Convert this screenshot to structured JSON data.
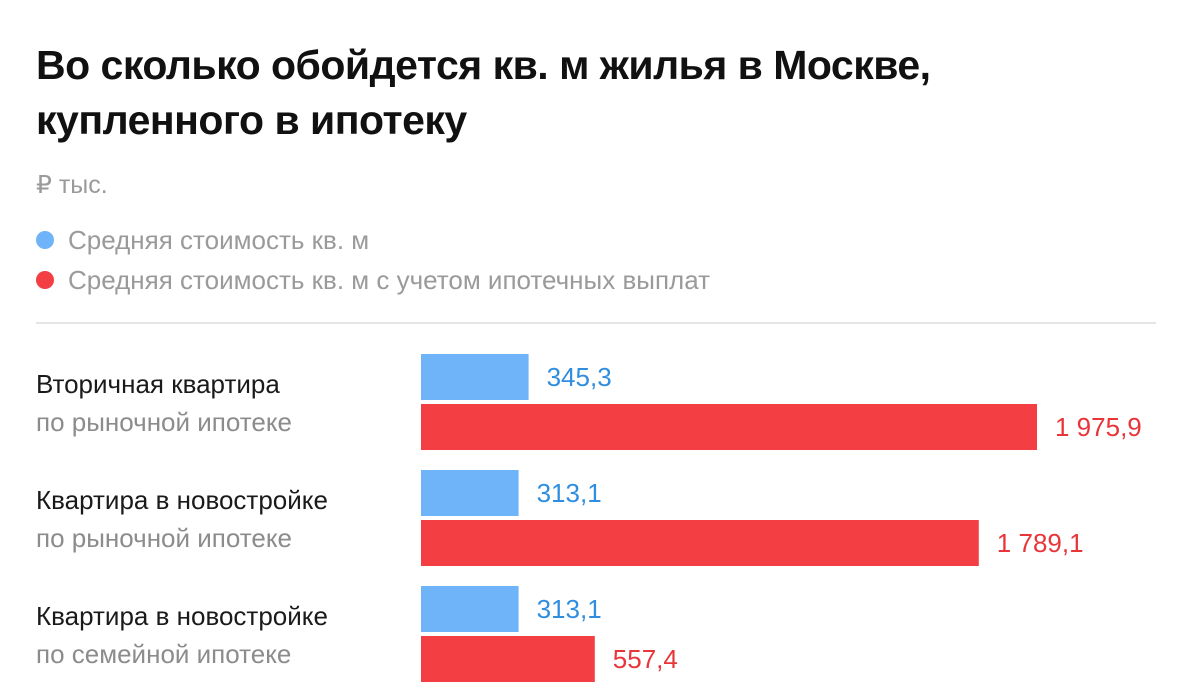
{
  "chart_data": {
    "type": "bar",
    "orientation": "horizontal",
    "title": "Во сколько обойдется кв. м жилья в Москве, купленного в ипотеку",
    "title_lines": [
      "Во сколько обойдется кв. м жилья в Москве,",
      "купленного в ипотеку"
    ],
    "unit": "₽ тыс.",
    "categories": [
      {
        "line1": "Вторичная квартира",
        "line2": "по рыночной ипотеке"
      },
      {
        "line1": "Квартира в новостройке",
        "line2": "по рыночной ипотеке"
      },
      {
        "line1": "Квартира в новостройке",
        "line2": "по семейной ипотеке"
      }
    ],
    "series": [
      {
        "name": "Средняя стоимость кв. м",
        "color": "#6fb3f8",
        "label_color": "#2f8ee0",
        "values": [
          345.3,
          313.1,
          313.1
        ],
        "value_labels": [
          "345,3",
          "313,1",
          "313,1"
        ]
      },
      {
        "name": "Средняя стоимость кв. м с учетом ипотечных выплат",
        "color": "#f33f43",
        "label_color": "#e8353a",
        "values": [
          1975.9,
          1789.1,
          557.4
        ],
        "value_labels": [
          "1 975,9",
          "1 789,1",
          "557,4"
        ]
      }
    ],
    "xlim": [
      0,
      1975.9
    ],
    "grid": false,
    "legend_position": "top-left"
  }
}
